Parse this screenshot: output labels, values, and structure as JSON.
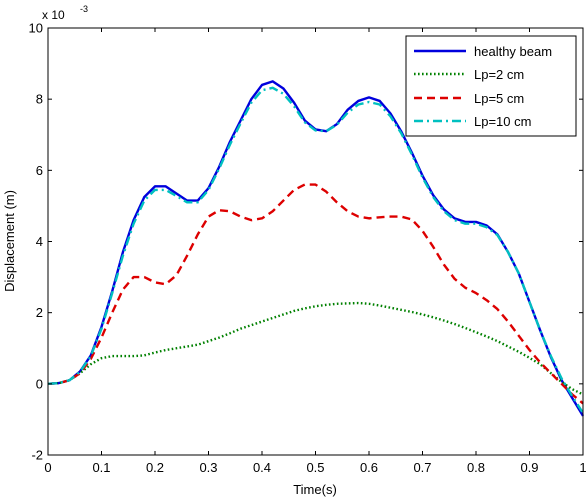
{
  "chart_data": {
    "type": "line",
    "title": "",
    "xlabel": "Time(s)",
    "ylabel": "Displacement (m)",
    "exponent_prefix": "x 10",
    "exponent_power": "-3",
    "xlim": [
      0,
      1
    ],
    "ylim": [
      -2,
      10
    ],
    "xticks": [
      0,
      0.1,
      0.2,
      0.3,
      0.4,
      0.5,
      0.6,
      0.7,
      0.8,
      0.9,
      1
    ],
    "xtick_labels": [
      "0",
      "0.1",
      "0.2",
      "0.3",
      "0.4",
      "0.5",
      "0.6",
      "0.7",
      "0.8",
      "0.9",
      "1"
    ],
    "yticks": [
      -2,
      0,
      2,
      4,
      6,
      8,
      10
    ],
    "ytick_labels": [
      "-2",
      "0",
      "2",
      "4",
      "6",
      "8",
      "10"
    ],
    "grid": false,
    "legend_position": "top-right",
    "series": [
      {
        "name": "healthy beam",
        "color": "#0000dd",
        "style": "solid",
        "x": [
          0,
          0.02,
          0.04,
          0.06,
          0.08,
          0.1,
          0.12,
          0.14,
          0.16,
          0.18,
          0.2,
          0.22,
          0.24,
          0.26,
          0.28,
          0.3,
          0.32,
          0.34,
          0.36,
          0.38,
          0.4,
          0.42,
          0.44,
          0.46,
          0.48,
          0.5,
          0.52,
          0.54,
          0.56,
          0.58,
          0.6,
          0.62,
          0.64,
          0.66,
          0.68,
          0.7,
          0.72,
          0.74,
          0.76,
          0.78,
          0.8,
          0.82,
          0.84,
          0.86,
          0.88,
          0.9,
          0.92,
          0.94,
          0.96,
          0.98,
          1.0
        ],
        "y": [
          0,
          0.02,
          0.1,
          0.35,
          0.8,
          1.6,
          2.6,
          3.7,
          4.6,
          5.25,
          5.55,
          5.55,
          5.35,
          5.15,
          5.15,
          5.5,
          6.1,
          6.8,
          7.4,
          8.0,
          8.4,
          8.5,
          8.3,
          7.9,
          7.4,
          7.15,
          7.1,
          7.3,
          7.7,
          7.95,
          8.05,
          7.95,
          7.6,
          7.1,
          6.5,
          5.85,
          5.3,
          4.9,
          4.65,
          4.55,
          4.55,
          4.45,
          4.2,
          3.7,
          3.1,
          2.3,
          1.5,
          0.75,
          0.1,
          -0.4,
          -0.9
        ]
      },
      {
        "name": "Lp=2 cm",
        "color": "#008000",
        "style": "dotted",
        "x": [
          0,
          0.02,
          0.04,
          0.06,
          0.08,
          0.1,
          0.12,
          0.14,
          0.16,
          0.18,
          0.2,
          0.22,
          0.24,
          0.26,
          0.28,
          0.3,
          0.32,
          0.34,
          0.36,
          0.38,
          0.4,
          0.42,
          0.44,
          0.46,
          0.48,
          0.5,
          0.52,
          0.54,
          0.56,
          0.58,
          0.6,
          0.62,
          0.64,
          0.66,
          0.68,
          0.7,
          0.72,
          0.74,
          0.76,
          0.78,
          0.8,
          0.82,
          0.84,
          0.86,
          0.88,
          0.9,
          0.92,
          0.94,
          0.96,
          0.98,
          1.0
        ],
        "y": [
          0,
          0.02,
          0.1,
          0.3,
          0.55,
          0.72,
          0.78,
          0.78,
          0.78,
          0.8,
          0.88,
          0.95,
          1.0,
          1.05,
          1.1,
          1.2,
          1.3,
          1.42,
          1.55,
          1.65,
          1.75,
          1.85,
          1.95,
          2.05,
          2.12,
          2.18,
          2.22,
          2.25,
          2.26,
          2.27,
          2.25,
          2.2,
          2.14,
          2.08,
          2.02,
          1.95,
          1.87,
          1.78,
          1.68,
          1.57,
          1.45,
          1.33,
          1.2,
          1.05,
          0.9,
          0.73,
          0.55,
          0.3,
          0.05,
          -0.15,
          -0.3
        ]
      },
      {
        "name": "Lp=5 cm",
        "color": "#dd0000",
        "style": "dashed",
        "x": [
          0,
          0.02,
          0.04,
          0.06,
          0.08,
          0.1,
          0.12,
          0.14,
          0.16,
          0.18,
          0.2,
          0.22,
          0.24,
          0.26,
          0.28,
          0.3,
          0.32,
          0.34,
          0.36,
          0.38,
          0.4,
          0.42,
          0.44,
          0.46,
          0.48,
          0.5,
          0.52,
          0.54,
          0.56,
          0.58,
          0.6,
          0.62,
          0.64,
          0.66,
          0.68,
          0.7,
          0.72,
          0.74,
          0.76,
          0.78,
          0.8,
          0.82,
          0.84,
          0.86,
          0.88,
          0.9,
          0.92,
          0.94,
          0.96,
          0.98,
          1.0
        ],
        "y": [
          0,
          0.02,
          0.1,
          0.3,
          0.7,
          1.3,
          2.0,
          2.65,
          3.0,
          3.0,
          2.85,
          2.8,
          3.05,
          3.6,
          4.2,
          4.7,
          4.88,
          4.85,
          4.7,
          4.6,
          4.65,
          4.85,
          5.15,
          5.45,
          5.6,
          5.6,
          5.4,
          5.1,
          4.85,
          4.7,
          4.65,
          4.68,
          4.7,
          4.7,
          4.62,
          4.3,
          3.85,
          3.35,
          2.95,
          2.7,
          2.55,
          2.35,
          2.1,
          1.75,
          1.35,
          0.95,
          0.6,
          0.3,
          0.0,
          -0.3,
          -0.55
        ]
      },
      {
        "name": "Lp=10 cm",
        "color": "#00c0c0",
        "style": "dashdot",
        "x": [
          0,
          0.02,
          0.04,
          0.06,
          0.08,
          0.1,
          0.12,
          0.14,
          0.16,
          0.18,
          0.2,
          0.22,
          0.24,
          0.26,
          0.28,
          0.3,
          0.32,
          0.34,
          0.36,
          0.38,
          0.4,
          0.42,
          0.44,
          0.46,
          0.48,
          0.5,
          0.52,
          0.54,
          0.56,
          0.58,
          0.6,
          0.62,
          0.64,
          0.66,
          0.68,
          0.7,
          0.72,
          0.74,
          0.76,
          0.78,
          0.8,
          0.82,
          0.84,
          0.86,
          0.88,
          0.9,
          0.92,
          0.94,
          0.96,
          0.98,
          1.0
        ],
        "y": [
          0,
          0.02,
          0.1,
          0.34,
          0.78,
          1.55,
          2.55,
          3.6,
          4.5,
          5.15,
          5.45,
          5.45,
          5.28,
          5.1,
          5.1,
          5.45,
          6.05,
          6.72,
          7.32,
          7.9,
          8.25,
          8.32,
          8.15,
          7.8,
          7.35,
          7.12,
          7.1,
          7.28,
          7.62,
          7.85,
          7.92,
          7.85,
          7.52,
          7.05,
          6.45,
          5.8,
          5.25,
          4.85,
          4.6,
          4.5,
          4.5,
          4.4,
          4.18,
          3.7,
          3.1,
          2.3,
          1.5,
          0.78,
          0.15,
          -0.35,
          -0.82
        ]
      }
    ]
  }
}
